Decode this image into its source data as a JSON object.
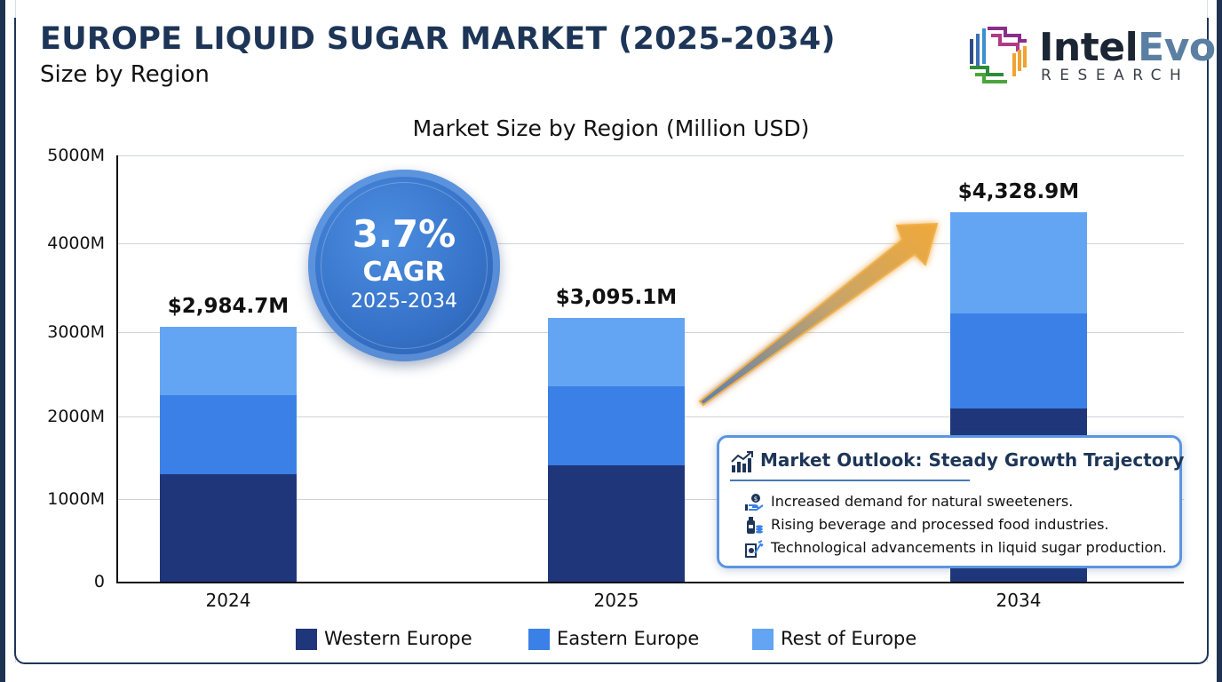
{
  "header": {
    "title": "EUROPE LIQUID SUGAR MARKET (2025-2034)",
    "subtitle": "Size by Region"
  },
  "logo": {
    "name_part1": "Intel",
    "name_part2": "Evo",
    "tagline": "RESEARCH"
  },
  "colors": {
    "western_europe": "#1f367a",
    "eastern_europe": "#3a80e6",
    "rest_of_europe": "#63a5f3",
    "title_navy": "#1d3557",
    "cagr_badge": "#3673c9",
    "arrow_orange": "#f0a93a"
  },
  "cagr_badge": {
    "value": "3.7%",
    "label": "CAGR",
    "period": "2025-2034"
  },
  "outlook": {
    "title": "Market Outlook: Steady Growth Trajectory",
    "icon": "growth-chart-icon",
    "items": [
      {
        "icon": "hand-coin-icon",
        "text": "Increased demand for natural sweeteners."
      },
      {
        "icon": "bottle-stack-icon",
        "text": "Rising beverage and processed food industries."
      },
      {
        "icon": "technology-gear-icon",
        "text": "Technological advancements in liquid sugar production."
      }
    ]
  },
  "chart_data": {
    "type": "bar",
    "stacked": true,
    "title": "Market Size by Region (Million USD)",
    "xlabel": "",
    "ylabel": "",
    "ylim": [
      0,
      5000
    ],
    "y_ticks": [
      "0",
      "1000M",
      "2000M",
      "3000M",
      "4000M",
      "5000M"
    ],
    "categories": [
      "2024",
      "2025",
      "2034"
    ],
    "series": [
      {
        "name": "Western Europe",
        "values": [
          1260,
          1365,
          2031
        ]
      },
      {
        "name": "Eastern Europe",
        "values": [
          928,
          927,
          1115
        ]
      },
      {
        "name": "Rest of Europe",
        "values": [
          796.7,
          803.1,
          1182.9
        ]
      }
    ],
    "totals": [
      2984.7,
      3095.1,
      4328.9
    ],
    "total_labels": [
      "$2,984.7M",
      "$3,095.1M",
      "$4,328.9M"
    ],
    "legend": [
      "Western Europe",
      "Eastern Europe",
      "Rest of Europe"
    ],
    "legend_position": "bottom",
    "grid": true,
    "annotations": [
      "3.7% CAGR 2025-2034",
      "Market Outlook: Steady Growth Trajectory"
    ]
  }
}
